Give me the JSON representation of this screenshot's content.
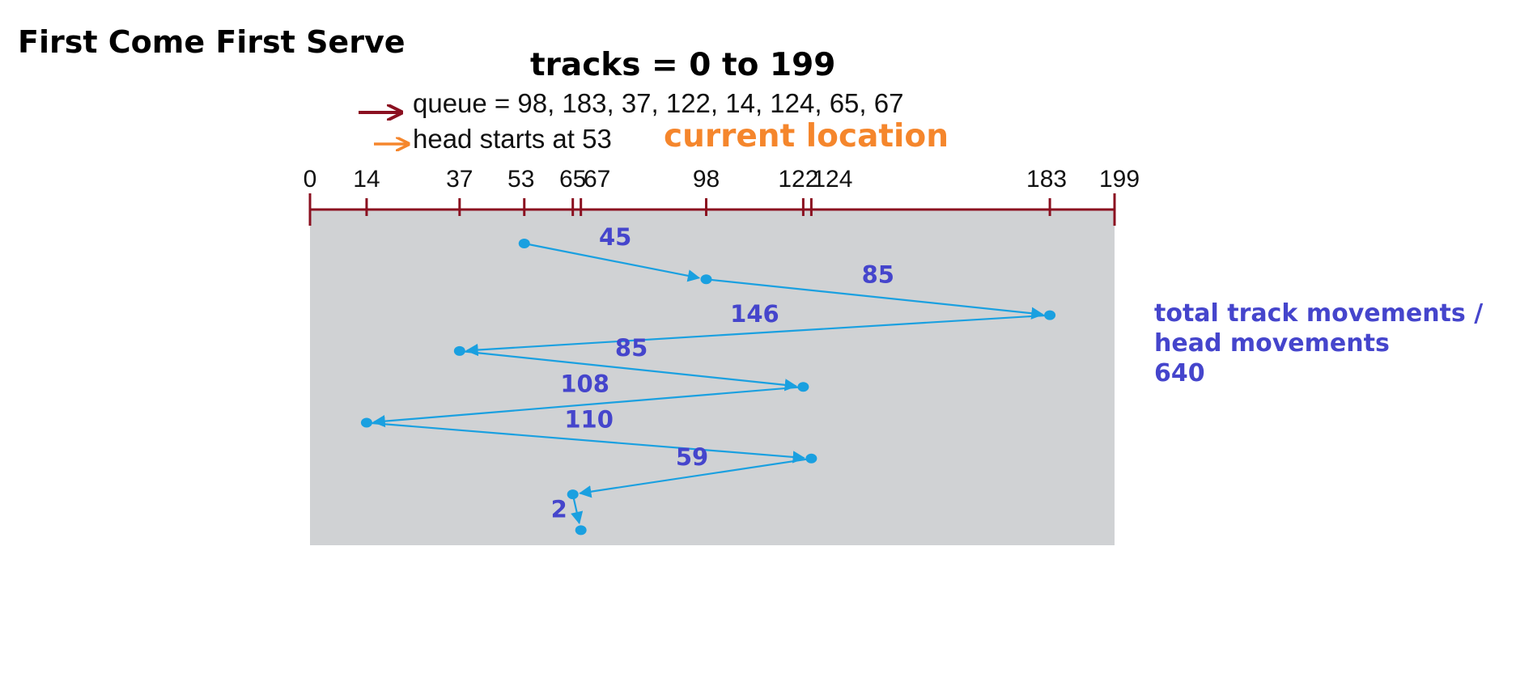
{
  "title": "First Come First Serve",
  "subtitle": "tracks = 0 to 199",
  "queue_text": "queue = 98, 183, 37, 122, 14, 124, 65, 67",
  "head_text": "head starts at 53",
  "current_location": "current location",
  "total": {
    "line1": "total track movements /",
    "line2": "head movements",
    "value": "640"
  },
  "colors": {
    "axis": "#8b1020",
    "panel": "#d0d2d4",
    "path": "#1aa0e0",
    "movement_label": "#4545cc",
    "head_arrow": "#f5862c",
    "queue_arrow": "#8b1020"
  },
  "icons": {
    "queue_arrow": "right-arrow-icon",
    "head_arrow": "right-arrow-icon"
  },
  "track_range": [
    0,
    199
  ],
  "tick_labels": [
    "0",
    "14",
    "37",
    "53",
    "65",
    "67",
    "98",
    "122",
    "124",
    "183",
    "199"
  ],
  "ticks": [
    0,
    14,
    37,
    53,
    65,
    67,
    98,
    122,
    124,
    183,
    199
  ],
  "head_start": 53,
  "service_order": [
    53,
    98,
    183,
    37,
    122,
    14,
    124,
    65,
    67
  ],
  "movements": [
    "45",
    "85",
    "146",
    "85",
    "108",
    "110",
    "59",
    "2"
  ]
}
